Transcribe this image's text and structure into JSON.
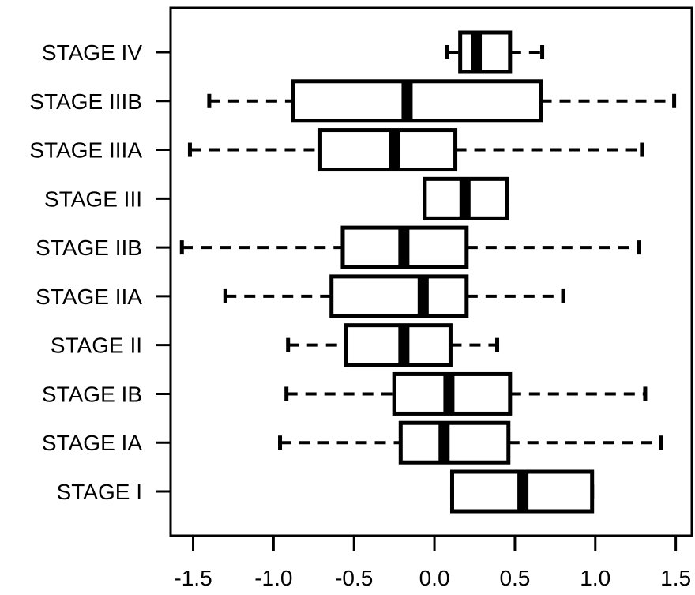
{
  "chart_data": {
    "type": "boxplot",
    "orientation": "horizontal",
    "title": "",
    "xlabel": "",
    "ylabel": "",
    "xlim": [
      -1.64,
      1.6
    ],
    "x_ticks": [
      "-1.5",
      "-1.0",
      "-0.5",
      "0.0",
      "0.5",
      "1.0",
      "1.5"
    ],
    "grid": false,
    "categories": [
      "STAGE I",
      "STAGE IA",
      "STAGE IB",
      "STAGE II",
      "STAGE IIA",
      "STAGE IIB",
      "STAGE III",
      "STAGE IIIA",
      "STAGE IIIB",
      "STAGE IV"
    ],
    "boxes": [
      {
        "label": "STAGE I",
        "whisker_low": 0.11,
        "q1": 0.11,
        "median": 0.55,
        "q3": 0.98,
        "whisker_high": 0.98
      },
      {
        "label": "STAGE IA",
        "whisker_low": -0.96,
        "q1": -0.21,
        "median": 0.06,
        "q3": 0.46,
        "whisker_high": 1.41
      },
      {
        "label": "STAGE IB",
        "whisker_low": -0.92,
        "q1": -0.25,
        "median": 0.09,
        "q3": 0.47,
        "whisker_high": 1.31
      },
      {
        "label": "STAGE II",
        "whisker_low": -0.91,
        "q1": -0.55,
        "median": -0.19,
        "q3": 0.1,
        "whisker_high": 0.39
      },
      {
        "label": "STAGE IIA",
        "whisker_low": -1.3,
        "q1": -0.64,
        "median": -0.07,
        "q3": 0.2,
        "whisker_high": 0.8
      },
      {
        "label": "STAGE IIB",
        "whisker_low": -1.57,
        "q1": -0.57,
        "median": -0.19,
        "q3": 0.2,
        "whisker_high": 1.27
      },
      {
        "label": "STAGE III",
        "whisker_low": -0.06,
        "q1": -0.06,
        "median": 0.19,
        "q3": 0.45,
        "whisker_high": 0.45
      },
      {
        "label": "STAGE IIIA",
        "whisker_low": -1.52,
        "q1": -0.71,
        "median": -0.25,
        "q3": 0.13,
        "whisker_high": 1.29
      },
      {
        "label": "STAGE IIIB",
        "whisker_low": -1.4,
        "q1": -0.88,
        "median": -0.17,
        "q3": 0.66,
        "whisker_high": 1.49
      },
      {
        "label": "STAGE IV",
        "whisker_low": 0.08,
        "q1": 0.16,
        "median": 0.26,
        "q3": 0.47,
        "whisker_high": 0.67
      }
    ]
  }
}
